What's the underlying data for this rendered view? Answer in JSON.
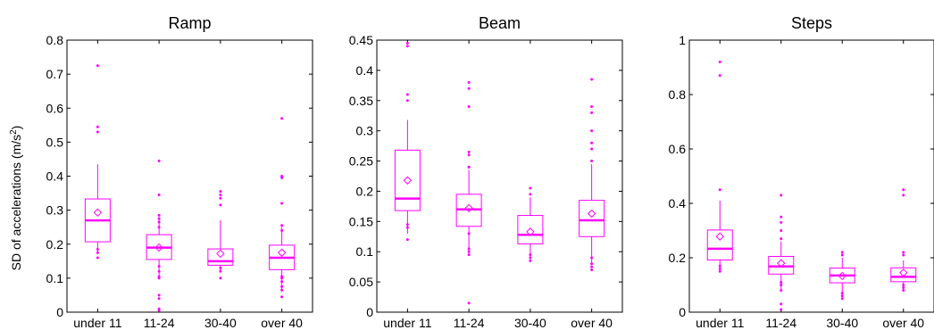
{
  "color": "#ff00ff",
  "chart_data": [
    {
      "type": "box",
      "title": "Ramp",
      "ylabel": "SD of accelerations (m/s²)",
      "ylabel_main": "SD of accelerations (m/s",
      "ylabel_sup": "2",
      "ylabel_close": ")",
      "ylim": [
        0,
        0.8
      ],
      "yticks": [
        "0",
        "0.1",
        "0.2",
        "0.3",
        "0.4",
        "0.5",
        "0.6",
        "0.7",
        "0.8"
      ],
      "categories": [
        "under 11",
        "11-24",
        "30-40",
        "over 40"
      ],
      "boxes": [
        {
          "min": 0.17,
          "q1": 0.207,
          "median": 0.27,
          "q3": 0.333,
          "max": 0.435,
          "mean": 0.293,
          "outliers": [
            0.16,
            0.175,
            0.185,
            0.53,
            0.545,
            0.725
          ]
        },
        {
          "min": 0.1,
          "q1": 0.155,
          "median": 0.19,
          "q3": 0.228,
          "max": 0.28,
          "mean": 0.19,
          "outliers": [
            0.005,
            0.01,
            0.04,
            0.05,
            0.1,
            0.105,
            0.12,
            0.135,
            0.25,
            0.265,
            0.275,
            0.285,
            0.345,
            0.445
          ]
        },
        {
          "min": 0.12,
          "q1": 0.138,
          "median": 0.15,
          "q3": 0.186,
          "max": 0.27,
          "mean": 0.172,
          "outliers": [
            0.1,
            0.12,
            0.13,
            0.315,
            0.335,
            0.345,
            0.355
          ]
        },
        {
          "min": 0.06,
          "q1": 0.125,
          "median": 0.16,
          "q3": 0.197,
          "max": 0.25,
          "mean": 0.175,
          "outliers": [
            0.045,
            0.065,
            0.075,
            0.09,
            0.1,
            0.105,
            0.24,
            0.255,
            0.32,
            0.395,
            0.4,
            0.57
          ]
        }
      ]
    },
    {
      "type": "box",
      "title": "Beam",
      "ylim": [
        0,
        0.45
      ],
      "yticks": [
        "0",
        "0.05",
        "0.1",
        "0.15",
        "0.2",
        "0.25",
        "0.3",
        "0.35",
        "0.4",
        "0.45"
      ],
      "categories": [
        "under 11",
        "11-24",
        "30-40",
        "over 40"
      ],
      "boxes": [
        {
          "min": 0.13,
          "q1": 0.168,
          "median": 0.188,
          "q3": 0.268,
          "max": 0.318,
          "mean": 0.218,
          "outliers": [
            0.12,
            0.14,
            0.145,
            0.35,
            0.36,
            0.44,
            0.445
          ]
        },
        {
          "min": 0.1,
          "q1": 0.142,
          "median": 0.17,
          "q3": 0.195,
          "max": 0.235,
          "mean": 0.172,
          "outliers": [
            0.015,
            0.095,
            0.1,
            0.105,
            0.13,
            0.24,
            0.24,
            0.26,
            0.265,
            0.34,
            0.37,
            0.38
          ]
        },
        {
          "min": 0.09,
          "q1": 0.113,
          "median": 0.128,
          "q3": 0.16,
          "max": 0.19,
          "mean": 0.133,
          "outliers": [
            0.085,
            0.09,
            0.095,
            0.195,
            0.205
          ]
        },
        {
          "min": 0.08,
          "q1": 0.125,
          "median": 0.152,
          "q3": 0.185,
          "max": 0.245,
          "mean": 0.163,
          "outliers": [
            0.07,
            0.075,
            0.08,
            0.09,
            0.25,
            0.27,
            0.28,
            0.3,
            0.33,
            0.34,
            0.385
          ]
        }
      ]
    },
    {
      "type": "box",
      "title": "Steps",
      "ylim": [
        0,
        1
      ],
      "yticks": [
        "0",
        "0.2",
        "0.4",
        "0.6",
        "0.8",
        "1"
      ],
      "categories": [
        "under 11",
        "11-24",
        "30-40",
        "over 40"
      ],
      "boxes": [
        {
          "min": 0.15,
          "q1": 0.192,
          "median": 0.233,
          "q3": 0.302,
          "max": 0.41,
          "mean": 0.278,
          "outliers": [
            0.15,
            0.16,
            0.17,
            0.45,
            0.87,
            0.92
          ]
        },
        {
          "min": 0.08,
          "q1": 0.14,
          "median": 0.168,
          "q3": 0.205,
          "max": 0.26,
          "mean": 0.18,
          "outliers": [
            0.01,
            0.03,
            0.08,
            0.1,
            0.11,
            0.27,
            0.3,
            0.33,
            0.35,
            0.43
          ]
        },
        {
          "min": 0.06,
          "q1": 0.108,
          "median": 0.135,
          "q3": 0.162,
          "max": 0.2,
          "mean": 0.133,
          "outliers": [
            0.05,
            0.06,
            0.07,
            0.21,
            0.22
          ]
        },
        {
          "min": 0.08,
          "q1": 0.112,
          "median": 0.13,
          "q3": 0.163,
          "max": 0.19,
          "mean": 0.145,
          "outliers": [
            0.08,
            0.09,
            0.1,
            0.21,
            0.22,
            0.43,
            0.45
          ]
        }
      ]
    }
  ]
}
